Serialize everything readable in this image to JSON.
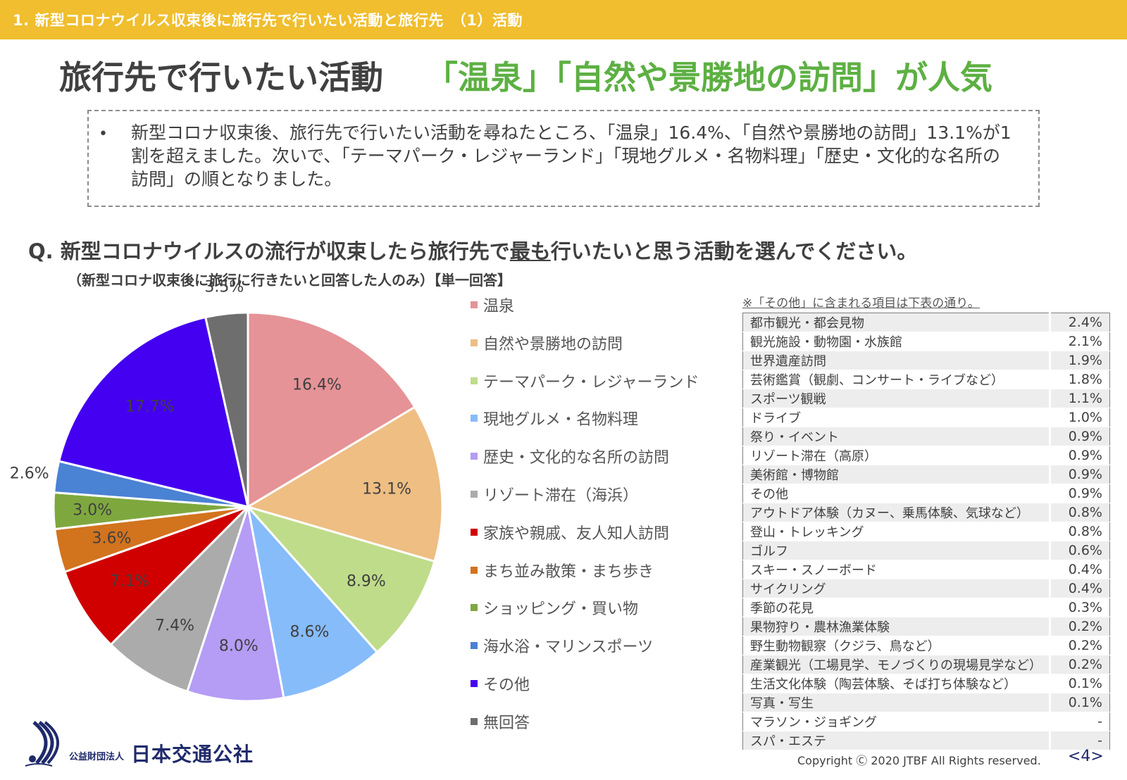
{
  "header": {
    "section_title": "1.  新型コロナウイルス収束後に旅行先で行いたい活動と旅行先　（1）活動"
  },
  "headline": {
    "main": "旅行先で行いたい活動",
    "accent": "「温泉」「自然や景勝地の訪問」が人気",
    "accent_color": "#5DB043"
  },
  "summary": {
    "bullet": "•",
    "text": "新型コロナ収束後、旅行先で行いたい活動を尋ねたところ、「温泉」16.4%、「自然や景勝地の訪問」13.1%が1割を超えました。次いで、「テーマパーク・レジャーランド」「現地グルメ・名物料理」「歴史・文化的な名所の訪問」の順となりました。"
  },
  "question": {
    "prefix": "Q.  新型コロナウイルスの流行が収束したら旅行先で",
    "emphasis": "最も",
    "suffix": "行いたいと思う活動を選んでください。",
    "sub": "（新型コロナ収束後に旅行に行きたいと回答した人のみ）【単一回答】"
  },
  "chart_data": {
    "type": "pie",
    "title": "新型コロナウイルスの流行が収束したら旅行先で最も行いたいと思う活動",
    "start_angle_deg": 0,
    "direction": "clockwise",
    "legend_position": "right",
    "categories": [
      "温泉",
      "自然や景勝地の訪問",
      "テーマパーク・レジャーランド",
      "現地グルメ・名物料理",
      "歴史・文化的な名所の訪問",
      "リゾート滞在（海浜）",
      "家族や親戚、友人知人訪問",
      "まち並み散策・まち歩き",
      "ショッピング・買い物",
      "海水浴・マリンスポーツ",
      "その他",
      "無回答"
    ],
    "values": [
      16.4,
      13.1,
      8.9,
      8.6,
      8.0,
      7.4,
      7.1,
      3.6,
      3.0,
      2.6,
      17.7,
      3.5
    ],
    "labels": [
      "16.4%",
      "13.1%",
      "8.9%",
      "8.6%",
      "8.0%",
      "7.4%",
      "7.1%",
      "3.6%",
      "3.0%",
      "2.6%",
      "17.7%",
      "3.5%"
    ],
    "colors": [
      "#E59396",
      "#EEBE83",
      "#BFDC8A",
      "#86BCFA",
      "#B59CF5",
      "#ABABAB",
      "#D00000",
      "#D2731E",
      "#7EA83E",
      "#4A82D4",
      "#4400F0",
      "#6E6E6E"
    ],
    "units": "%"
  },
  "other_table": {
    "note": "※「その他」に含まれる項目は下表の通り。",
    "rows": [
      {
        "label": "都市観光・都会見物",
        "value": "2.4%"
      },
      {
        "label": "観光施設・動物園・水族館",
        "value": "2.1%"
      },
      {
        "label": "世界遺産訪問",
        "value": "1.9%"
      },
      {
        "label": "芸術鑑賞（観劇、コンサート・ライブなど）",
        "value": "1.8%"
      },
      {
        "label": "スポーツ観戦",
        "value": "1.1%"
      },
      {
        "label": "ドライブ",
        "value": "1.0%"
      },
      {
        "label": "祭り・イベント",
        "value": "0.9%"
      },
      {
        "label": "リゾート滞在（高原）",
        "value": "0.9%"
      },
      {
        "label": "美術館・博物館",
        "value": "0.9%"
      },
      {
        "label": "その他",
        "value": "0.9%"
      },
      {
        "label": "アウトドア体験（カヌー、乗馬体験、気球など）",
        "value": "0.8%"
      },
      {
        "label": "登山・トレッキング",
        "value": "0.8%"
      },
      {
        "label": "ゴルフ",
        "value": "0.6%"
      },
      {
        "label": "スキー・スノーボード",
        "value": "0.4%"
      },
      {
        "label": "サイクリング",
        "value": "0.4%"
      },
      {
        "label": "季節の花見",
        "value": "0.3%"
      },
      {
        "label": "果物狩り・農林漁業体験",
        "value": "0.2%"
      },
      {
        "label": "野生動物観察（クジラ、鳥など）",
        "value": "0.2%"
      },
      {
        "label": "産業観光（工場見学、モノづくりの現場見学など）",
        "value": "0.2%"
      },
      {
        "label": "生活文化体験（陶芸体験、そば打ち体験など）",
        "value": "0.1%"
      },
      {
        "label": "写真・写生",
        "value": "0.1%"
      },
      {
        "label": "マラソン・ジョギング",
        "value": "-"
      },
      {
        "label": "スパ・エステ",
        "value": "-"
      }
    ]
  },
  "footer": {
    "org_prefix": "公益財団法人",
    "org_name": "日本交通公社",
    "copyright": "Copyright Ⓒ 2020 JTBF All Rights reserved.",
    "page": "<4>"
  }
}
